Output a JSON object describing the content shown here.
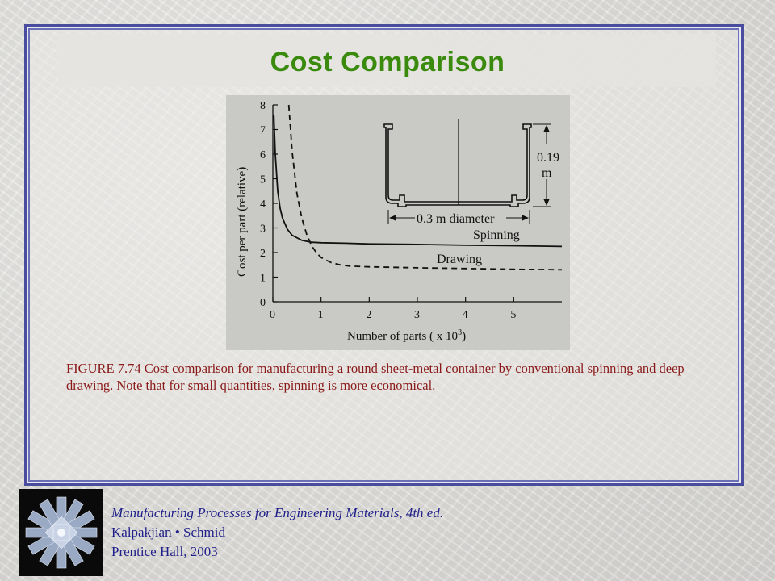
{
  "slide": {
    "title": "Cost Comparison",
    "caption": "FIGURE  7.74  Cost comparison for manufacturing a round sheet-metal container by conventional spinning and deep drawing. Note that for small quantities, spinning is more economical.",
    "footer": {
      "book": "Manufacturing Processes for Engineering Materials, 4th ed.",
      "authors": "Kalpakjian • Schmid",
      "publisher": "Prentice Hall,  2003"
    },
    "colors": {
      "title": "#3a8a0e",
      "caption": "#8a1a1a",
      "footer": "#1f1f8a",
      "frame": "#4a4d9e"
    },
    "logo_icon": "crystal-burst-logo"
  },
  "chart_data": {
    "type": "line",
    "xlabel_prefix": "Number of parts ( x 10",
    "xlabel_exp": "3",
    "xlabel_suffix": ")",
    "ylabel": "Cost per part (relative)",
    "xlim": [
      0,
      6
    ],
    "ylim": [
      0,
      8
    ],
    "x_ticks": [
      "0",
      "1",
      "2",
      "3",
      "4",
      "5"
    ],
    "y_ticks": [
      "0",
      "1",
      "2",
      "3",
      "4",
      "5",
      "6",
      "7",
      "8"
    ],
    "series": [
      {
        "name": "Spinning",
        "style": "solid",
        "x": [
          0.02,
          0.05,
          0.1,
          0.15,
          0.2,
          0.3,
          0.4,
          0.6,
          0.8,
          1.0,
          1.5,
          2.0,
          3.0,
          4.0,
          5.0,
          6.0
        ],
        "y": [
          7.6,
          6.0,
          4.5,
          3.8,
          3.4,
          2.95,
          2.7,
          2.5,
          2.42,
          2.4,
          2.38,
          2.35,
          2.33,
          2.3,
          2.28,
          2.25
        ]
      },
      {
        "name": "Drawing",
        "style": "dashed",
        "x": [
          0.33,
          0.4,
          0.5,
          0.6,
          0.7,
          0.8,
          0.9,
          1.0,
          1.2,
          1.4,
          1.6,
          2.0,
          2.5,
          3.0,
          4.0,
          5.0,
          6.0
        ],
        "y": [
          8.0,
          6.1,
          4.4,
          3.4,
          2.75,
          2.3,
          2.0,
          1.8,
          1.6,
          1.5,
          1.45,
          1.42,
          1.4,
          1.38,
          1.35,
          1.32,
          1.3
        ]
      }
    ],
    "inset": {
      "height_label_1": "0.19",
      "height_label_2": "m",
      "diameter_label": "0.3 m diameter"
    }
  }
}
